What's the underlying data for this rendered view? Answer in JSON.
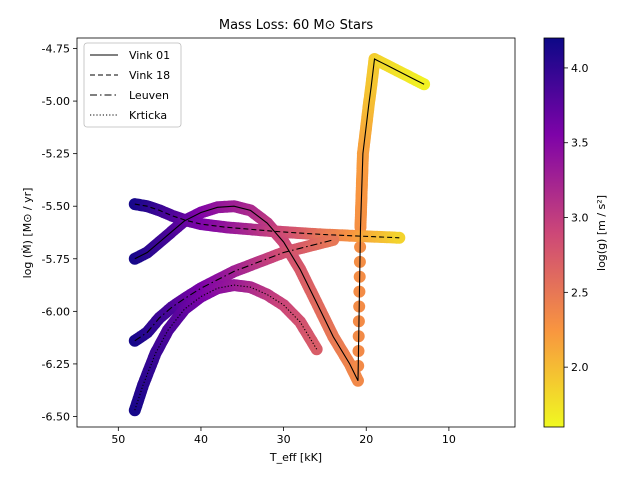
{
  "chart_data": {
    "type": "scatter",
    "title": "Mass Loss: 60 M⊙ Stars",
    "xlabel": "T_eff [kK]",
    "ylabel": "log (Ṁ) [M⊙ / yr]",
    "xlim": [
      55,
      2
    ],
    "ylim": [
      -6.55,
      -4.7
    ],
    "x_ticks": [
      50,
      40,
      30,
      20,
      10
    ],
    "x_tick_labels": [
      "50",
      "40",
      "30",
      "20",
      "10"
    ],
    "y_ticks": [
      -4.75,
      -5.0,
      -5.25,
      -5.5,
      -5.75,
      -6.0,
      -6.25,
      -6.5
    ],
    "y_tick_labels": [
      "-4.75",
      "-5.00",
      "-5.25",
      "-5.50",
      "-5.75",
      "-6.00",
      "-6.25",
      "-6.50"
    ],
    "legend_position": "top-left",
    "colorbar": {
      "label": "log(g) [m / s²]",
      "colormap": "plasma",
      "range": [
        1.6,
        4.2
      ],
      "ticks": [
        2.0,
        2.5,
        3.0,
        3.5,
        4.0
      ],
      "tick_labels": [
        "2.0",
        "2.5",
        "3.0",
        "3.5",
        "4.0"
      ]
    },
    "series": [
      {
        "name": "Vink 01",
        "line_style": "solid",
        "points": [
          [
            48.0,
            -5.75,
            4.15
          ],
          [
            46.5,
            -5.72,
            4.05
          ],
          [
            45.0,
            -5.67,
            3.95
          ],
          [
            43.5,
            -5.62,
            3.85
          ],
          [
            42.0,
            -5.57,
            3.72
          ],
          [
            40.0,
            -5.53,
            3.55
          ],
          [
            38.0,
            -5.505,
            3.4
          ],
          [
            36.0,
            -5.5,
            3.3
          ],
          [
            34.0,
            -5.52,
            3.2
          ],
          [
            32.0,
            -5.58,
            3.05
          ],
          [
            30.0,
            -5.67,
            2.9
          ],
          [
            28.0,
            -5.8,
            2.75
          ],
          [
            26.0,
            -5.96,
            2.62
          ],
          [
            24.0,
            -6.12,
            2.5
          ],
          [
            22.0,
            -6.25,
            2.4
          ],
          [
            21.0,
            -6.33,
            2.35
          ],
          [
            20.7,
            -5.6,
            2.3
          ],
          [
            20.4,
            -5.25,
            2.2
          ],
          [
            20.0,
            -5.12,
            2.1
          ],
          [
            19.7,
            -5.02,
            2.0
          ],
          [
            19.4,
            -4.93,
            1.95
          ],
          [
            19.0,
            -4.8,
            1.9
          ],
          [
            18.5,
            -4.81,
            1.85
          ],
          [
            17.5,
            -4.83,
            1.8
          ],
          [
            16.0,
            -4.86,
            1.75
          ],
          [
            14.5,
            -4.89,
            1.7
          ],
          [
            13.0,
            -4.92,
            1.65
          ]
        ]
      },
      {
        "name": "Vink 18",
        "line_style": "dashed",
        "points": [
          [
            48.0,
            -5.49,
            4.15
          ],
          [
            46.5,
            -5.5,
            4.05
          ],
          [
            45.0,
            -5.52,
            3.95
          ],
          [
            43.5,
            -5.545,
            3.85
          ],
          [
            42.0,
            -5.565,
            3.72
          ],
          [
            40.0,
            -5.585,
            3.58
          ],
          [
            37.0,
            -5.6,
            3.4
          ],
          [
            34.0,
            -5.61,
            3.2
          ],
          [
            31.0,
            -5.62,
            2.95
          ],
          [
            28.0,
            -5.628,
            2.75
          ],
          [
            25.0,
            -5.635,
            2.5
          ],
          [
            22.0,
            -5.64,
            2.3
          ],
          [
            19.0,
            -5.645,
            2.05
          ],
          [
            16.0,
            -5.65,
            1.85
          ]
        ]
      },
      {
        "name": "Leuven",
        "line_style": "dashdot",
        "points": [
          [
            48.0,
            -6.14,
            4.15
          ],
          [
            46.5,
            -6.1,
            4.05
          ],
          [
            45.0,
            -6.03,
            3.95
          ],
          [
            43.5,
            -5.98,
            3.85
          ],
          [
            42.0,
            -5.94,
            3.72
          ],
          [
            40.0,
            -5.89,
            3.6
          ],
          [
            38.0,
            -5.85,
            3.45
          ],
          [
            36.0,
            -5.81,
            3.3
          ],
          [
            34.0,
            -5.78,
            3.15
          ],
          [
            32.0,
            -5.75,
            3.0
          ],
          [
            30.0,
            -5.72,
            2.85
          ],
          [
            28.0,
            -5.7,
            2.75
          ],
          [
            26.0,
            -5.68,
            2.62
          ],
          [
            24.0,
            -5.66,
            2.5
          ]
        ]
      },
      {
        "name": "Krticka",
        "line_style": "dotted",
        "points": [
          [
            48.0,
            -6.47,
            4.15
          ],
          [
            47.0,
            -6.35,
            4.05
          ],
          [
            45.5,
            -6.2,
            3.95
          ],
          [
            44.0,
            -6.09,
            3.85
          ],
          [
            42.0,
            -5.99,
            3.72
          ],
          [
            40.0,
            -5.93,
            3.6
          ],
          [
            38.0,
            -5.89,
            3.45
          ],
          [
            36.0,
            -5.875,
            3.35
          ],
          [
            34.0,
            -5.885,
            3.2
          ],
          [
            32.0,
            -5.92,
            3.05
          ],
          [
            30.0,
            -5.97,
            2.92
          ],
          [
            28.0,
            -6.05,
            2.82
          ],
          [
            26.0,
            -6.18,
            2.72
          ]
        ]
      }
    ]
  }
}
